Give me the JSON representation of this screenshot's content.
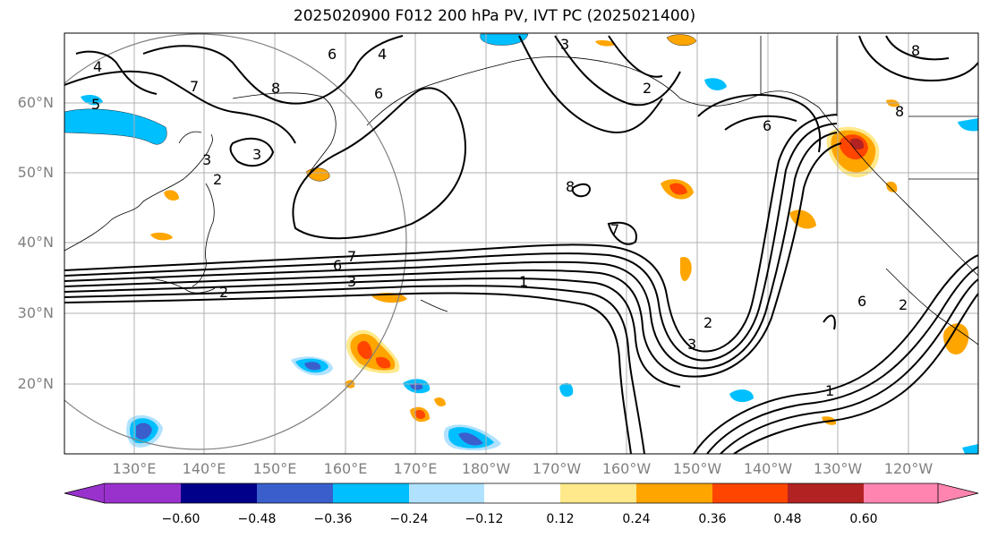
{
  "title": "2025020900 F012 200 hPa PV, IVT PC (2025021400)",
  "lat_labels": [
    "60°N",
    "50°N",
    "40°N",
    "30°N",
    "20°N"
  ],
  "lon_labels": [
    "130°E",
    "140°E",
    "150°E",
    "160°E",
    "170°E",
    "180°W",
    "170°W",
    "160°W",
    "150°W",
    "140°W",
    "130°W",
    "120°W"
  ],
  "colorbar": {
    "ticks": [
      "−0.60",
      "−0.48",
      "−0.36",
      "−0.24",
      "−0.12",
      "0.12",
      "0.24",
      "0.36",
      "0.48",
      "0.60"
    ],
    "colors": [
      "#9932cc",
      "#00008b",
      "#3a5fcd",
      "#00bfff",
      "#b0e2ff",
      "#ffffff",
      "#ffe98a",
      "#ffa500",
      "#ff4500",
      "#b22222",
      "#ff85b0"
    ]
  },
  "pv_contour_labels": [
    "4",
    "5",
    "7",
    "8",
    "6",
    "4",
    "3",
    "3",
    "2",
    "6",
    "8",
    "8",
    "6",
    "7",
    "3",
    "2",
    "6",
    "7",
    "3",
    "2",
    "1",
    "2",
    "3",
    "6",
    "2",
    "1",
    "8"
  ],
  "colors": {
    "contour": "#000000",
    "grid": "#b0b0b0",
    "coast": "#000000",
    "circle": "#808080",
    "axis_label": "#808080"
  }
}
